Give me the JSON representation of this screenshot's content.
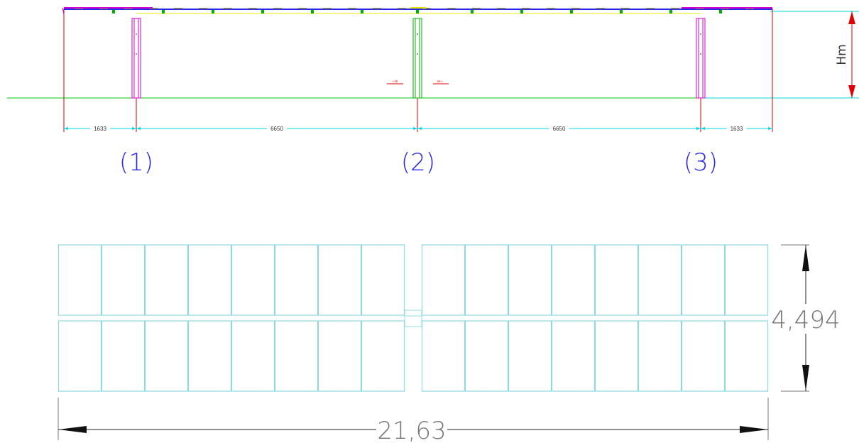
{
  "colors": {
    "ground": "#00c800",
    "cyan": "#00d8e0",
    "red": "#e00000",
    "magenta": "#d000d0",
    "yellow": "#e8e800",
    "green": "#00b000",
    "blue": "#2a2ae6",
    "panel": "#8fd8e0",
    "text": "#333333",
    "grey": "#777777"
  },
  "elevation": {
    "height_label": "Hm",
    "spans": [
      "1633",
      "6650",
      "6650",
      "1633"
    ],
    "axes": [
      "(1)",
      "(2)",
      "(3)"
    ],
    "small_marks": [
      "—ab",
      "ab—"
    ]
  },
  "plan": {
    "width_label": "21,63",
    "depth_label": "4,494",
    "panels_per_row": 8,
    "rows": 2,
    "blocks": 2
  }
}
